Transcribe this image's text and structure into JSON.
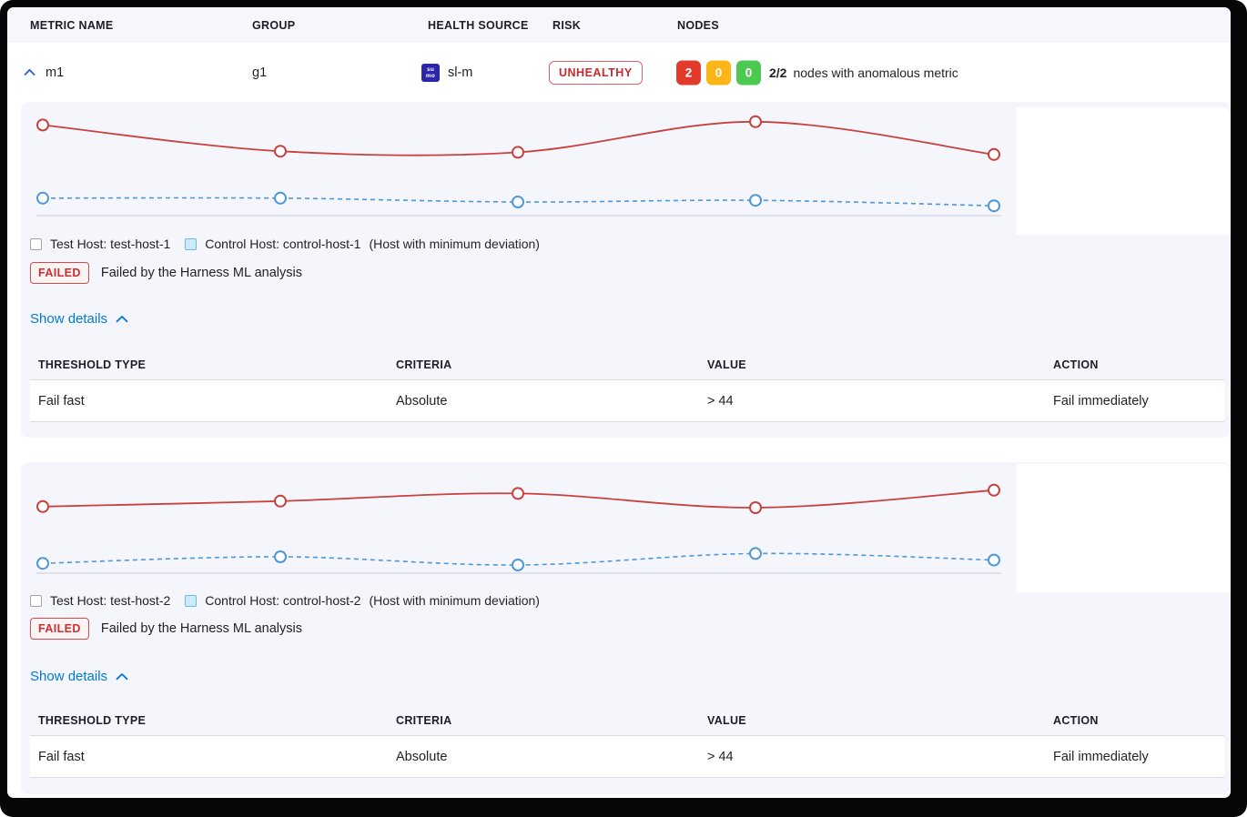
{
  "colors": {
    "test_line": "#c9413e",
    "control_line": "#4e97d9",
    "axis_line": "#c6cce0",
    "link_blue": "#0278d5",
    "risk_red": "#cf2e33",
    "node_unhealthy_bg": "#e23b2b",
    "node_warning_bg": "#fcb519",
    "node_healthy_bg": "#4dc952",
    "health_source_icon_bg": "#2b26ab"
  },
  "table_header": {
    "columns": [
      "METRIC NAME",
      "GROUP",
      "HEALTH SOURCE",
      "RISK",
      "NODES"
    ]
  },
  "metric_row": {
    "name": "m1",
    "group": "g1",
    "health_source": "sl-m",
    "risk_label": "UNHEALTHY",
    "nodes": {
      "unhealthy_count": "2",
      "warning_count": "0",
      "healthy_count": "0",
      "summary_count": "2/2",
      "summary_text": "nodes with anomalous metric"
    }
  },
  "health_source_icon": {
    "line1": "su",
    "line2": "mo"
  },
  "panels": [
    {
      "test_host_label": "Test Host: test-host-1",
      "control_host_label": "Control Host: control-host-1",
      "deviation_note": "(Host with minimum deviation)",
      "status_label": "FAILED",
      "status_text": "Failed by the Harness ML analysis",
      "show_details_label": "Show details",
      "threshold_table": {
        "columns": [
          "THRESHOLD TYPE",
          "CRITERIA",
          "VALUE",
          "ACTION"
        ],
        "rows": [
          {
            "threshold_type": "Fail fast",
            "criteria": "Absolute",
            "value": "> 44",
            "action": "Fail immediately"
          }
        ]
      }
    },
    {
      "test_host_label": "Test Host: test-host-2",
      "control_host_label": "Control Host: control-host-2",
      "deviation_note": "(Host with minimum deviation)",
      "status_label": "FAILED",
      "status_text": "Failed by the Harness ML analysis",
      "show_details_label": "Show details",
      "threshold_table": {
        "columns": [
          "THRESHOLD TYPE",
          "CRITERIA",
          "VALUE",
          "ACTION"
        ],
        "rows": [
          {
            "threshold_type": "Fail fast",
            "criteria": "Absolute",
            "value": "> 44",
            "action": "Fail immediately"
          }
        ]
      }
    }
  ],
  "chart_data": [
    {
      "type": "line",
      "title": "",
      "x": [
        0,
        1,
        2,
        3,
        4
      ],
      "axes_labeled": false,
      "grid": false,
      "ylim": [
        0,
        100
      ],
      "series": [
        {
          "name": "Test Host: test-host-1",
          "style": "solid",
          "values": [
            83,
            59,
            58,
            86,
            56
          ]
        },
        {
          "name": "Control Host: control-host-1",
          "style": "dashed",
          "values": [
            16,
            16,
            12.5,
            14,
            9
          ]
        }
      ]
    },
    {
      "type": "line",
      "title": "",
      "x": [
        0,
        1,
        2,
        3,
        4
      ],
      "axes_labeled": false,
      "grid": false,
      "ylim": [
        0,
        100
      ],
      "series": [
        {
          "name": "Test Host: test-host-2",
          "style": "solid",
          "values": [
            61,
            66,
            73,
            60,
            76
          ]
        },
        {
          "name": "Control Host: control-host-2",
          "style": "dashed",
          "values": [
            9,
            15,
            7.5,
            18,
            12
          ]
        }
      ]
    }
  ]
}
